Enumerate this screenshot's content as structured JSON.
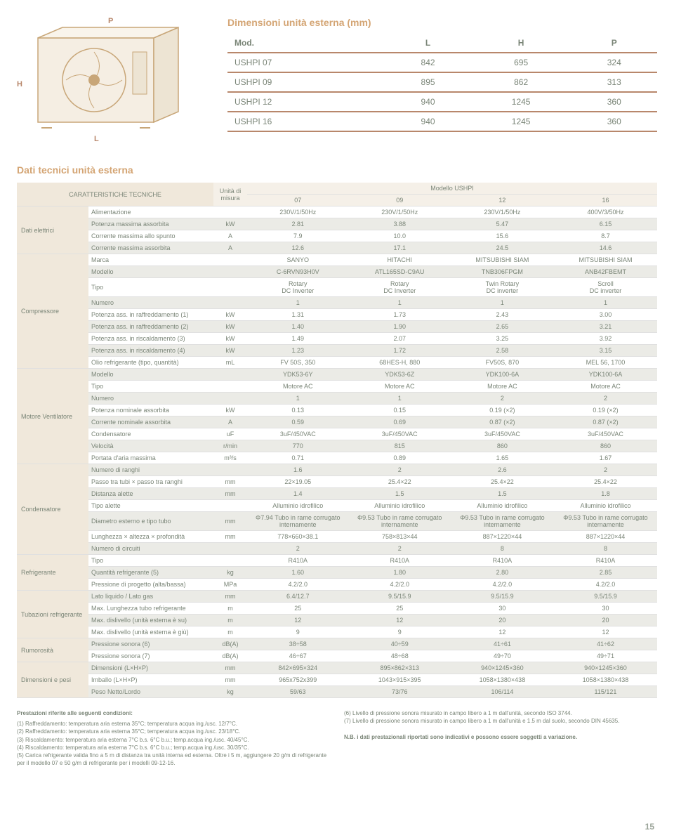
{
  "illustration": {
    "label_P": "P",
    "label_H": "H",
    "label_L": "L"
  },
  "dimensions": {
    "title": "Dimensioni unità esterna (mm)",
    "headers": [
      "Mod.",
      "L",
      "H",
      "P"
    ],
    "rows": [
      [
        "USHPI 07",
        "842",
        "695",
        "324"
      ],
      [
        "USHPI 09",
        "895",
        "862",
        "313"
      ],
      [
        "USHPI 12",
        "940",
        "1245",
        "360"
      ],
      [
        "USHPI 16",
        "940",
        "1245",
        "360"
      ]
    ]
  },
  "spec": {
    "title": "Dati tecnici unità esterna",
    "header": {
      "caratt": "CARATTERISTICHE TECNICHE",
      "unita": "Unità di misura",
      "modello": "Modello USHPI",
      "cols": [
        "07",
        "09",
        "12",
        "16"
      ]
    },
    "groups": [
      {
        "name": "Dati elettrici",
        "rows": [
          {
            "p": "Alimentazione",
            "u": "",
            "v": [
              "230V/1/50Hz",
              "230V/1/50Hz",
              "230V/1/50Hz",
              "400V/3/50Hz"
            ],
            "g": 0
          },
          {
            "p": "Potenza massima assorbita",
            "u": "kW",
            "v": [
              "2.81",
              "3.88",
              "5.47",
              "6.15"
            ],
            "g": 1
          },
          {
            "p": "Corrente massima allo spunto",
            "u": "A",
            "v": [
              "7.9",
              "10.0",
              "15.6",
              "8.7"
            ],
            "g": 0
          },
          {
            "p": "Corrente massima assorbita",
            "u": "A",
            "v": [
              "12.6",
              "17.1",
              "24.5",
              "14.6"
            ],
            "g": 1
          }
        ]
      },
      {
        "name": "Compressore",
        "rows": [
          {
            "p": "Marca",
            "u": "",
            "v": [
              "SANYO",
              "HITACHI",
              "MITSUBISHI SIAM",
              "MITSUBISHI SIAM"
            ],
            "g": 0
          },
          {
            "p": "Modello",
            "u": "",
            "v": [
              "C-6RVN93H0V",
              "ATL165SD-C9AU",
              "TNB306FPGM",
              "ANB42FBEMT"
            ],
            "g": 1
          },
          {
            "p": "Tipo",
            "u": "",
            "v": [
              "Rotary\nDC Inverter",
              "Rotary\nDC Inverter",
              "Twin Rotary\nDC inverter",
              "Scroll\nDC inverter"
            ],
            "g": 0
          },
          {
            "p": "Numero",
            "u": "",
            "v": [
              "1",
              "1",
              "1",
              "1"
            ],
            "g": 1
          },
          {
            "p": "Potenza ass. in raffreddamento (1)",
            "u": "kW",
            "v": [
              "1.31",
              "1.73",
              "2.43",
              "3.00"
            ],
            "g": 0
          },
          {
            "p": "Potenza ass. in raffreddamento (2)",
            "u": "kW",
            "v": [
              "1.40",
              "1.90",
              "2.65",
              "3.21"
            ],
            "g": 1
          },
          {
            "p": "Potenza ass. in riscaldamento (3)",
            "u": "kW",
            "v": [
              "1.49",
              "2.07",
              "3.25",
              "3.92"
            ],
            "g": 0
          },
          {
            "p": "Potenza ass. in riscaldamento (4)",
            "u": "kW",
            "v": [
              "1.23",
              "1.72",
              "2.58",
              "3.15"
            ],
            "g": 1
          },
          {
            "p": "Olio refrigerante (tipo, quantità)",
            "u": "mL",
            "v": [
              "FV 50S, 350",
              "68HES-H, 880",
              "FV50S, 870",
              "MEL 56, 1700"
            ],
            "g": 0
          }
        ]
      },
      {
        "name": "Motore Ventilatore",
        "rows": [
          {
            "p": "Modello",
            "u": "",
            "v": [
              "YDK53-6Y",
              "YDK53-6Z",
              "YDK100-6A",
              "YDK100-6A"
            ],
            "g": 1
          },
          {
            "p": "Tipo",
            "u": "",
            "v": [
              "Motore AC",
              "Motore AC",
              "Motore AC",
              "Motore AC"
            ],
            "g": 0
          },
          {
            "p": "Numero",
            "u": "",
            "v": [
              "1",
              "1",
              "2",
              "2"
            ],
            "g": 1
          },
          {
            "p": "Potenza nominale assorbita",
            "u": "kW",
            "v": [
              "0.13",
              "0.15",
              "0.19 (×2)",
              "0.19 (×2)"
            ],
            "g": 0
          },
          {
            "p": "Corrente nominale assorbita",
            "u": "A",
            "v": [
              "0.59",
              "0.69",
              "0.87 (×2)",
              "0.87 (×2)"
            ],
            "g": 1
          },
          {
            "p": "Condensatore",
            "u": "uF",
            "v": [
              "3uF/450VAC",
              "3uF/450VAC",
              "3uF/450VAC",
              "3uF/450VAC"
            ],
            "g": 0
          },
          {
            "p": "Velocità",
            "u": "r/min",
            "v": [
              "770",
              "815",
              "860",
              "860"
            ],
            "g": 1
          },
          {
            "p": "Portata d'aria massima",
            "u": "m³/s",
            "v": [
              "0.71",
              "0.89",
              "1.65",
              "1.67"
            ],
            "g": 0
          }
        ]
      },
      {
        "name": "Condensatore",
        "rows": [
          {
            "p": "Numero di ranghi",
            "u": "",
            "v": [
              "1.6",
              "2",
              "2.6",
              "2"
            ],
            "g": 1
          },
          {
            "p": "Passo tra tubi × passo tra ranghi",
            "u": "mm",
            "v": [
              "22×19.05",
              "25.4×22",
              "25.4×22",
              "25.4×22"
            ],
            "g": 0
          },
          {
            "p": "Distanza alette",
            "u": "mm",
            "v": [
              "1.4",
              "1.5",
              "1.5",
              "1.8"
            ],
            "g": 1
          },
          {
            "p": "Tipo alette",
            "u": "",
            "v": [
              "Alluminio idrofilico",
              "Alluminio idrofilico",
              "Alluminio idrofilico",
              "Alluminio idrofilico"
            ],
            "g": 0
          },
          {
            "p": "Diametro esterno e tipo tubo",
            "u": "mm",
            "v": [
              "Φ7.94 Tubo in rame corrugato internamente",
              "Φ9.53 Tubo in rame corrugato internamente",
              "Φ9.53 Tubo in rame corrugato internamente",
              "Φ9.53 Tubo in rame corrugato internamente"
            ],
            "g": 1
          },
          {
            "p": "Lunghezza × altezza × profondità",
            "u": "mm",
            "v": [
              "778×660×38.1",
              "758×813×44",
              "887×1220×44",
              "887×1220×44"
            ],
            "g": 0
          },
          {
            "p": "Numero di circuiti",
            "u": "",
            "v": [
              "2",
              "2",
              "8",
              "8"
            ],
            "g": 1
          }
        ]
      },
      {
        "name": "Refrigerante",
        "rows": [
          {
            "p": "Tipo",
            "u": "",
            "v": [
              "R410A",
              "R410A",
              "R410A",
              "R410A"
            ],
            "g": 0
          },
          {
            "p": "Quantità refrigerante (5)",
            "u": "kg",
            "v": [
              "1.60",
              "1.80",
              "2.80",
              "2.85"
            ],
            "g": 1
          },
          {
            "p": "Pressione di progetto (alta/bassa)",
            "u": "MPa",
            "v": [
              "4.2/2.0",
              "4.2/2.0",
              "4.2/2.0",
              "4.2/2.0"
            ],
            "g": 0
          }
        ]
      },
      {
        "name": "Tubazioni refrigerante",
        "rows": [
          {
            "p": "Lato liquido / Lato gas",
            "u": "mm",
            "v": [
              "6.4/12.7",
              "9.5/15.9",
              "9.5/15.9",
              "9.5/15.9"
            ],
            "g": 1
          },
          {
            "p": "Max. Lunghezza tubo refrigerante",
            "u": "m",
            "v": [
              "25",
              "25",
              "30",
              "30"
            ],
            "g": 0
          },
          {
            "p": "Max. dislivello (unità esterna è su)",
            "u": "m",
            "v": [
              "12",
              "12",
              "20",
              "20"
            ],
            "g": 1
          },
          {
            "p": "Max. dislivello (unità esterna è giù)",
            "u": "m",
            "v": [
              "9",
              "9",
              "12",
              "12"
            ],
            "g": 0
          }
        ]
      },
      {
        "name": "Rumorosità",
        "rows": [
          {
            "p": "Pressione sonora (6)",
            "u": "dB(A)",
            "v": [
              "38÷58",
              "40÷59",
              "41÷61",
              "41÷62"
            ],
            "g": 1
          },
          {
            "p": "Pressione sonora (7)",
            "u": "dB(A)",
            "v": [
              "46÷67",
              "48÷68",
              "49÷70",
              "49÷71"
            ],
            "g": 0
          }
        ]
      },
      {
        "name": "Dimensioni e pesi",
        "rows": [
          {
            "p": "Dimensioni (L×H×P)",
            "u": "mm",
            "v": [
              "842×695×324",
              "895×862×313",
              "940×1245×360",
              "940×1245×360"
            ],
            "g": 1
          },
          {
            "p": "Imballo (L×H×P)",
            "u": "mm",
            "v": [
              "965x752x399",
              "1043×915×395",
              "1058×1380×438",
              "1058×1380×438"
            ],
            "g": 0
          },
          {
            "p": "Peso Netto/Lordo",
            "u": "kg",
            "v": [
              "59/63",
              "73/76",
              "106/114",
              "115/121"
            ],
            "g": 1
          }
        ]
      }
    ]
  },
  "footnotes": {
    "title": "Prestazioni riferite alle seguenti condizioni:",
    "left": [
      "(1) Raffreddamento: temperatura aria esterna 35°C; temperatura acqua ing./usc. 12/7°C.",
      "(2) Raffreddamento: temperatura aria esterna 35°C; temperatura acqua ing./usc. 23/18°C.",
      "(3) Riscaldamento: temperatura aria esterna 7°C b.s. 6°C b.u.; temp.acqua ing./usc. 40/45°C.",
      "(4) Riscaldamento: temperatura aria esterna 7°C b.s. 6°C b.u.; temp.acqua ing./usc. 30/35°C.",
      "(5) Carica refrigerante valida fino a 5 m di distanza tra unità interna ed esterna. Oltre i 5 m, aggiungere 20 g/m di refrigerante per il modello 07 e 50 g/m di refrigerante per i modelli 09-12-16."
    ],
    "right": [
      "(6) Livello di pressione sonora misurato in campo libero a 1 m dall'unità, secondo ISO 3744.",
      "(7) Livello di pressione sonora misurato in campo libero a 1 m dall'unità e 1.5 m dal suolo, secondo DIN 45635.",
      "",
      "N.B. i dati prestazionali riportati sono indicativi e possono essere soggetti a variazione."
    ]
  },
  "page_num": "15"
}
